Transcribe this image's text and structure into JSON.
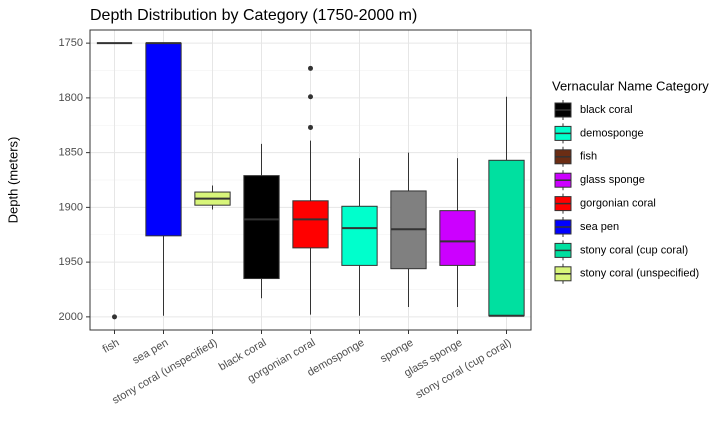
{
  "chart_data": {
    "type": "box",
    "title": "Depth Distribution by Category (1750-2000 m)",
    "y_label": "Depth (meters)",
    "categories": [
      "fish",
      "sea pen",
      "stony coral (unspecified)",
      "black coral",
      "gorgonian coral",
      "demosponge",
      "sponge",
      "glass sponge",
      "stony coral (cup coral)"
    ],
    "boxes": [
      {
        "color": "#6b2d14",
        "min": 1750,
        "q1": 1750,
        "median": 1750,
        "q3": 1750,
        "max": 1750,
        "outliers": [
          2000
        ]
      },
      {
        "color": "#0000ff",
        "min": 1750,
        "q1": 1750,
        "median": 1750,
        "q3": 1926,
        "max": 1999,
        "outliers": []
      },
      {
        "color": "#d8f57a",
        "min": 1880,
        "q1": 1886,
        "median": 1892,
        "q3": 1898,
        "max": 1902,
        "outliers": []
      },
      {
        "color": "#000000",
        "min": 1842,
        "q1": 1871,
        "median": 1911,
        "q3": 1965,
        "max": 1983,
        "outliers": []
      },
      {
        "color": "#ff0000",
        "min": 1839,
        "q1": 1894,
        "median": 1911,
        "q3": 1937,
        "max": 1998,
        "outliers": [
          1773,
          1799,
          1827
        ]
      },
      {
        "color": "#00ffcc",
        "min": 1855,
        "q1": 1899,
        "median": 1919,
        "q3": 1953,
        "max": 1999,
        "outliers": []
      },
      {
        "color": "#808080",
        "min": 1850,
        "q1": 1885,
        "median": 1920,
        "q3": 1956,
        "max": 1991,
        "outliers": []
      },
      {
        "color": "#cc00ff",
        "min": 1855,
        "q1": 1903,
        "median": 1931,
        "q3": 1953,
        "max": 1991,
        "outliers": []
      },
      {
        "color": "#00e0a0",
        "min": 1799,
        "q1": 1857,
        "median": 1999,
        "q3": 1999,
        "max": 1999,
        "outliers": []
      }
    ],
    "ylim": [
      1738,
      2012
    ],
    "y_reversed": true,
    "yticks": [
      1750,
      1800,
      1850,
      1900,
      1950,
      2000
    ],
    "grid": true,
    "minor_grid": true,
    "legend": {
      "title": "Vernacular Name Category",
      "position": "right",
      "items": [
        {
          "name": "black coral",
          "color": "#000000"
        },
        {
          "name": "demosponge",
          "color": "#00ffcc"
        },
        {
          "name": "fish",
          "color": "#6b2d14"
        },
        {
          "name": "glass sponge",
          "color": "#cc00ff"
        },
        {
          "name": "gorgonian coral",
          "color": "#ff0000"
        },
        {
          "name": "sea pen",
          "color": "#0000ff"
        },
        {
          "name": "stony coral (cup coral)",
          "color": "#00e0a0"
        },
        {
          "name": "stony coral (unspecified)",
          "color": "#d8f57a"
        }
      ]
    }
  }
}
